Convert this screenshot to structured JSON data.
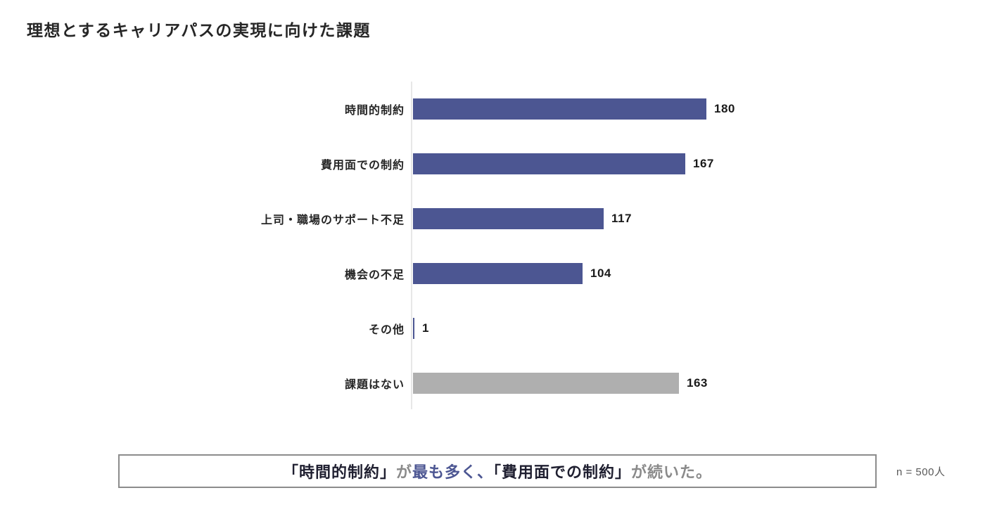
{
  "title": "理想とするキャリアパスの実現に向けた課題",
  "chart_data": {
    "type": "bar",
    "orientation": "horizontal",
    "title": "理想とするキャリアパスの実現に向けた課題",
    "categories": [
      "時間的制約",
      "費用面での制約",
      "上司・職場のサポート不足",
      "機会の不足",
      "その他",
      "課題はない"
    ],
    "values": [
      180,
      167,
      117,
      104,
      1,
      163
    ],
    "bar_colors": [
      "#4C5692",
      "#4C5692",
      "#4C5692",
      "#4C5692",
      "#4C5692",
      "#AFAFAF"
    ],
    "value_labels": [
      "180",
      "167",
      "117",
      "104",
      "1",
      "163"
    ],
    "xlabel": "",
    "ylabel": "",
    "xlim": [
      0,
      194
    ],
    "grid": false,
    "legend": "none",
    "baseline_color": "#e7e7e7"
  },
  "summary_box": {
    "border_color": "#8c8c8c",
    "segments": [
      {
        "text": "「時間的制約」",
        "color": "#1f1f30"
      },
      {
        "text": "が",
        "color": "#8a8a8a"
      },
      {
        "text": "最も多く、",
        "color": "#4C5692"
      },
      {
        "text": "「費用面での制約」",
        "color": "#1f1f30"
      },
      {
        "text": "が続いた。",
        "color": "#8a8a8a"
      }
    ]
  },
  "sample_note": "n = 500人",
  "colors": {
    "accent_indigo": "#4C5692",
    "neutral_gray_bar": "#AFAFAF",
    "title_text": "#262626",
    "note_text": "#595959"
  }
}
